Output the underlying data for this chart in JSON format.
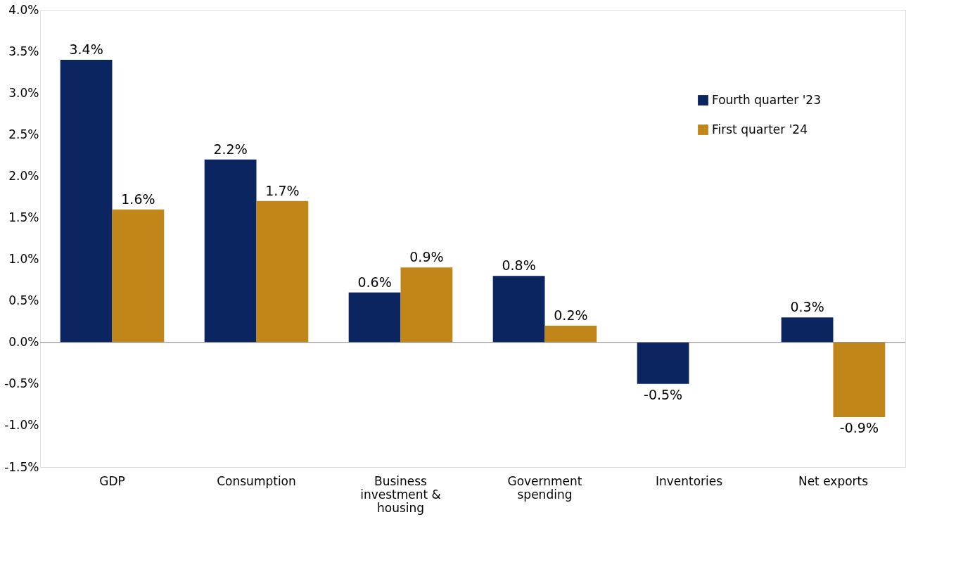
{
  "chart_data": {
    "type": "bar",
    "categories": [
      "GDP",
      "Consumption",
      "Business investment & housing",
      "Government spending",
      "Inventories",
      "Net exports"
    ],
    "series": [
      {
        "name": "Fourth quarter '23",
        "color": "#0b2561",
        "values": [
          3.4,
          2.2,
          0.6,
          0.8,
          -0.5,
          0.3
        ],
        "value_labels": [
          "3.4%",
          "2.2%",
          "0.6%",
          "0.8%",
          "-0.5%",
          "0.3%"
        ]
      },
      {
        "name": "First quarter '24",
        "color": "#c0861a",
        "values": [
          1.6,
          1.7,
          0.9,
          0.2,
          null,
          -0.9
        ],
        "value_labels": [
          "1.6%",
          "1.7%",
          "0.9%",
          "0.2%",
          null,
          "-0.9%"
        ]
      }
    ],
    "ylim": [
      -1.5,
      4.0
    ],
    "yticks": [
      {
        "value": -1.5,
        "label": "-1.5%"
      },
      {
        "value": -1.0,
        "label": "-1.0%"
      },
      {
        "value": -0.5,
        "label": "-0.5%"
      },
      {
        "value": 0.0,
        "label": "0.0%"
      },
      {
        "value": 0.5,
        "label": "0.5%"
      },
      {
        "value": 1.0,
        "label": "1.0%"
      },
      {
        "value": 1.5,
        "label": "1.5%"
      },
      {
        "value": 2.0,
        "label": "2.0%"
      },
      {
        "value": 2.5,
        "label": "2.5%"
      },
      {
        "value": 3.0,
        "label": "3.0%"
      },
      {
        "value": 3.5,
        "label": "3.5%"
      },
      {
        "value": 4.0,
        "label": "4.0%"
      }
    ],
    "ref_lines": [
      {
        "axis": "y",
        "value": 0,
        "color": "#7f7f7f"
      }
    ],
    "grid": false,
    "legend": "top right"
  }
}
